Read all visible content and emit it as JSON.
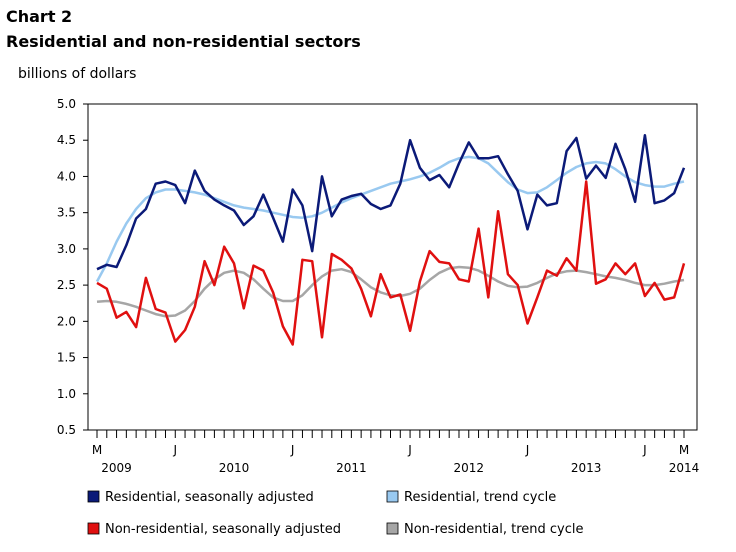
{
  "chart_data": {
    "type": "line",
    "title": "Chart 2",
    "subtitle": "Residential and non-residential sectors",
    "y_label": "billions of dollars",
    "categories": [
      "M",
      null,
      null,
      null,
      null,
      null,
      null,
      null,
      "J",
      null,
      null,
      null,
      null,
      null,
      null,
      null,
      null,
      null,
      null,
      null,
      "J",
      null,
      null,
      null,
      null,
      null,
      null,
      null,
      null,
      null,
      null,
      null,
      "J",
      null,
      null,
      null,
      null,
      null,
      null,
      null,
      null,
      null,
      null,
      null,
      "J",
      null,
      null,
      null,
      null,
      null,
      null,
      null,
      null,
      null,
      null,
      null,
      "J",
      null,
      null,
      null,
      "M"
    ],
    "years": [
      "2009",
      "2010",
      "2011",
      "2012",
      "2013",
      "2014"
    ],
    "ylim": [
      0.5,
      5.0
    ],
    "yticks": [
      {
        "value": 0.5,
        "label": "0.5"
      },
      {
        "value": 1,
        "label": "1.0"
      },
      {
        "value": 1.5,
        "label": "1.5"
      },
      {
        "value": 2,
        "label": "2.0"
      },
      {
        "value": 2.5,
        "label": "2.5"
      },
      {
        "value": 3,
        "label": "3.0"
      },
      {
        "value": 3.5,
        "label": "3.5"
      },
      {
        "value": 4,
        "label": "4.0"
      },
      {
        "value": 4.5,
        "label": "4.5"
      },
      {
        "value": 5,
        "label": "5.0"
      }
    ],
    "grid": false,
    "series": [
      {
        "name": "Residential, seasonally adjusted",
        "color": "#0b1a78",
        "values": [
          2.72,
          2.78,
          2.75,
          3.05,
          3.42,
          3.55,
          3.9,
          3.93,
          3.88,
          3.63,
          4.08,
          3.8,
          3.68,
          3.6,
          3.53,
          3.33,
          3.45,
          3.75,
          3.43,
          3.1,
          3.82,
          3.6,
          2.97,
          4.0,
          3.45,
          3.68,
          3.73,
          3.76,
          3.62,
          3.55,
          3.6,
          3.9,
          4.5,
          4.12,
          3.95,
          4.02,
          3.85,
          4.18,
          4.47,
          4.25,
          4.25,
          4.28,
          4.03,
          3.8,
          3.27,
          3.75,
          3.6,
          3.63,
          4.35,
          4.53,
          3.97,
          4.15,
          3.98,
          4.45,
          4.1,
          3.65,
          4.57,
          3.63,
          3.67,
          3.77,
          4.12
        ]
      },
      {
        "name": "Residential, trend cycle",
        "color": "#99c9f0",
        "values": [
          2.55,
          2.8,
          3.1,
          3.35,
          3.55,
          3.7,
          3.78,
          3.82,
          3.82,
          3.8,
          3.78,
          3.75,
          3.7,
          3.65,
          3.6,
          3.57,
          3.55,
          3.53,
          3.5,
          3.47,
          3.44,
          3.43,
          3.45,
          3.5,
          3.57,
          3.64,
          3.7,
          3.75,
          3.8,
          3.85,
          3.9,
          3.93,
          3.96,
          4.0,
          4.05,
          4.12,
          4.2,
          4.25,
          4.27,
          4.25,
          4.18,
          4.05,
          3.92,
          3.82,
          3.77,
          3.78,
          3.85,
          3.95,
          4.05,
          4.13,
          4.18,
          4.2,
          4.18,
          4.1,
          4.0,
          3.92,
          3.88,
          3.86,
          3.86,
          3.9,
          3.93
        ]
      },
      {
        "name": "Non-residential, seasonally adjusted",
        "color": "#e01010",
        "values": [
          2.53,
          2.45,
          2.05,
          2.13,
          1.92,
          2.6,
          2.17,
          2.12,
          1.72,
          1.88,
          2.2,
          2.83,
          2.5,
          3.03,
          2.8,
          2.18,
          2.77,
          2.7,
          2.4,
          1.93,
          1.68,
          2.85,
          2.83,
          1.78,
          2.93,
          2.85,
          2.73,
          2.45,
          2.07,
          2.65,
          2.33,
          2.37,
          1.87,
          2.55,
          2.97,
          2.82,
          2.8,
          2.58,
          2.55,
          3.28,
          2.33,
          3.52,
          2.65,
          2.5,
          1.97,
          2.33,
          2.7,
          2.63,
          2.87,
          2.7,
          3.93,
          2.52,
          2.58,
          2.8,
          2.65,
          2.8,
          2.35,
          2.53,
          2.3,
          2.33,
          2.8
        ]
      },
      {
        "name": "Non-residential, trend cycle",
        "color": "#a6a6a6",
        "values": [
          2.27,
          2.28,
          2.27,
          2.24,
          2.2,
          2.15,
          2.1,
          2.07,
          2.08,
          2.15,
          2.28,
          2.45,
          2.58,
          2.67,
          2.7,
          2.67,
          2.58,
          2.45,
          2.33,
          2.28,
          2.28,
          2.36,
          2.5,
          2.62,
          2.7,
          2.72,
          2.68,
          2.58,
          2.47,
          2.4,
          2.36,
          2.35,
          2.38,
          2.45,
          2.57,
          2.67,
          2.73,
          2.75,
          2.74,
          2.7,
          2.63,
          2.55,
          2.49,
          2.47,
          2.48,
          2.53,
          2.6,
          2.66,
          2.69,
          2.7,
          2.68,
          2.65,
          2.62,
          2.6,
          2.57,
          2.53,
          2.5,
          2.5,
          2.52,
          2.55,
          2.57
        ]
      }
    ]
  }
}
